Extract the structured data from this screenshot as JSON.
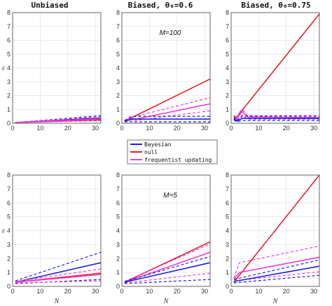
{
  "columns": [
    "Unbiased",
    "Biased, θ₀=0.6",
    "Biased, θ₀=0.75"
  ],
  "colors": {
    "bayesian": "#1f1fd8",
    "null": "#e0242b",
    "freq": "#ee3ddc"
  },
  "legend": [
    "Bayesian",
    "null",
    "frequentist updating"
  ],
  "chart_data": [
    {
      "type": "line",
      "row": 0,
      "col": 0,
      "annotation": "",
      "ylabel": "ε",
      "xlabel": "",
      "xlim": [
        0,
        32
      ],
      "ylim": [
        0,
        8
      ],
      "xticks": [
        0,
        10,
        20,
        30
      ],
      "yticks": [
        0,
        1,
        2,
        3,
        4,
        5,
        6,
        7,
        8
      ],
      "series": [
        {
          "name": "Bayesian",
          "style": "solid",
          "x": [
            1,
            32
          ],
          "y": [
            0.05,
            0.38
          ]
        },
        {
          "name": "Bayesian",
          "style": "dashed",
          "x": [
            1,
            32
          ],
          "y": [
            0.05,
            0.55
          ]
        },
        {
          "name": "Bayesian",
          "style": "dashed",
          "x": [
            1,
            32
          ],
          "y": [
            0.05,
            0.2
          ]
        },
        {
          "name": "null",
          "style": "solid",
          "x": [
            1,
            32
          ],
          "y": [
            0.05,
            0.25
          ]
        },
        {
          "name": "frequentist updating",
          "style": "solid",
          "x": [
            1,
            32
          ],
          "y": [
            0.05,
            0.32
          ]
        },
        {
          "name": "frequentist updating",
          "style": "dashed",
          "x": [
            1,
            32
          ],
          "y": [
            0.05,
            0.48
          ]
        },
        {
          "name": "frequentist updating",
          "style": "dashed",
          "x": [
            1,
            32
          ],
          "y": [
            0.05,
            0.18
          ]
        }
      ]
    },
    {
      "type": "line",
      "row": 0,
      "col": 1,
      "annotation": "M=100",
      "ylabel": "",
      "xlabel": "",
      "xlim": [
        0,
        32
      ],
      "ylim": [
        0,
        8
      ],
      "xticks": [
        0,
        10,
        20,
        30
      ],
      "yticks": [
        0,
        1,
        2,
        3,
        4,
        5,
        6,
        7,
        8
      ],
      "series": [
        {
          "name": "null",
          "style": "solid",
          "x": [
            1,
            32
          ],
          "y": [
            0.15,
            3.2
          ]
        },
        {
          "name": "frequentist updating",
          "style": "solid",
          "x": [
            1,
            3,
            5,
            32
          ],
          "y": [
            0.2,
            0.35,
            0.3,
            1.4
          ]
        },
        {
          "name": "frequentist updating",
          "style": "dashed",
          "x": [
            1,
            3,
            5,
            32
          ],
          "y": [
            0.2,
            0.5,
            0.5,
            1.85
          ]
        },
        {
          "name": "frequentist updating",
          "style": "dashed",
          "x": [
            1,
            3,
            5,
            32
          ],
          "y": [
            0.15,
            0.25,
            0.2,
            0.9
          ]
        },
        {
          "name": "Bayesian",
          "style": "dashed",
          "x": [
            1,
            4,
            32
          ],
          "y": [
            0.2,
            0.5,
            0.5
          ]
        },
        {
          "name": "Bayesian",
          "style": "solid",
          "x": [
            1,
            4,
            32
          ],
          "y": [
            0.15,
            0.3,
            0.3
          ]
        },
        {
          "name": "Bayesian",
          "style": "dashed",
          "x": [
            1,
            4,
            32
          ],
          "y": [
            0.1,
            0.1,
            0.1
          ]
        }
      ]
    },
    {
      "type": "line",
      "row": 0,
      "col": 2,
      "annotation": "",
      "ylabel": "",
      "xlabel": "",
      "xlim": [
        0,
        32
      ],
      "ylim": [
        0,
        8
      ],
      "xticks": [
        0,
        10,
        20,
        30
      ],
      "yticks": [
        0,
        1,
        2,
        3,
        4,
        5,
        6,
        7,
        8
      ],
      "series": [
        {
          "name": "null",
          "style": "solid",
          "x": [
            1,
            32
          ],
          "y": [
            0.2,
            7.9
          ]
        },
        {
          "name": "frequentist updating",
          "style": "solid",
          "x": [
            1,
            2,
            3,
            4,
            6,
            32
          ],
          "y": [
            0.5,
            0.3,
            0.6,
            0.85,
            0.45,
            0.4
          ]
        },
        {
          "name": "frequentist updating",
          "style": "dashed",
          "x": [
            1,
            2,
            3,
            4,
            6,
            32
          ],
          "y": [
            0.6,
            0.4,
            0.8,
            1.0,
            0.55,
            0.55
          ]
        },
        {
          "name": "frequentist updating",
          "style": "dashed",
          "x": [
            1,
            2,
            3,
            4,
            6,
            32
          ],
          "y": [
            0.4,
            0.2,
            0.4,
            0.6,
            0.3,
            0.3
          ]
        },
        {
          "name": "Bayesian",
          "style": "dashed",
          "x": [
            1,
            2,
            4,
            32
          ],
          "y": [
            0.5,
            0.2,
            0.5,
            0.5
          ]
        },
        {
          "name": "Bayesian",
          "style": "solid",
          "x": [
            1,
            2,
            4,
            32
          ],
          "y": [
            0.35,
            0.15,
            0.35,
            0.35
          ]
        },
        {
          "name": "Bayesian",
          "style": "dashed",
          "x": [
            1,
            2,
            4,
            32
          ],
          "y": [
            0.25,
            0.1,
            0.2,
            0.2
          ]
        }
      ]
    },
    {
      "type": "line",
      "row": 1,
      "col": 0,
      "annotation": "",
      "ylabel": "ε",
      "xlabel": "N",
      "xlim": [
        0,
        32
      ],
      "ylim": [
        0,
        8
      ],
      "xticks": [
        0,
        10,
        20,
        30
      ],
      "yticks": [
        0,
        1,
        2,
        3,
        4,
        5,
        6,
        7,
        8
      ],
      "series": [
        {
          "name": "Bayesian",
          "style": "dashed",
          "x": [
            1,
            32
          ],
          "y": [
            0.4,
            2.45
          ]
        },
        {
          "name": "Bayesian",
          "style": "solid",
          "x": [
            1,
            32
          ],
          "y": [
            0.3,
            1.7
          ]
        },
        {
          "name": "Bayesian",
          "style": "dashed",
          "x": [
            1,
            32
          ],
          "y": [
            0.2,
            0.5
          ]
        },
        {
          "name": "null",
          "style": "solid",
          "x": [
            1,
            32
          ],
          "y": [
            0.3,
            0.95
          ]
        },
        {
          "name": "frequentist updating",
          "style": "solid",
          "x": [
            1,
            32
          ],
          "y": [
            0.3,
            0.85
          ]
        },
        {
          "name": "frequentist updating",
          "style": "dashed",
          "x": [
            1,
            32
          ],
          "y": [
            0.35,
            1.25
          ]
        },
        {
          "name": "frequentist updating",
          "style": "dashed",
          "x": [
            1,
            32
          ],
          "y": [
            0.25,
            0.4
          ]
        }
      ]
    },
    {
      "type": "line",
      "row": 1,
      "col": 1,
      "annotation": "M=5",
      "ylabel": "",
      "xlabel": "N",
      "xlim": [
        0,
        32
      ],
      "ylim": [
        0,
        8
      ],
      "xticks": [
        0,
        10,
        20,
        30
      ],
      "yticks": [
        0,
        1,
        2,
        3,
        4,
        5,
        6,
        7,
        8
      ],
      "series": [
        {
          "name": "null",
          "style": "solid",
          "x": [
            1,
            32
          ],
          "y": [
            0.3,
            3.2
          ]
        },
        {
          "name": "frequentist updating",
          "style": "solid",
          "x": [
            1,
            32
          ],
          "y": [
            0.3,
            2.45
          ]
        },
        {
          "name": "frequentist updating",
          "style": "dashed",
          "x": [
            1,
            32
          ],
          "y": [
            0.35,
            3.05
          ]
        },
        {
          "name": "frequentist updating",
          "style": "dashed",
          "x": [
            1,
            32
          ],
          "y": [
            0.25,
            0.95
          ]
        },
        {
          "name": "Bayesian",
          "style": "dashed",
          "x": [
            1,
            32
          ],
          "y": [
            0.35,
            2.15
          ]
        },
        {
          "name": "Bayesian",
          "style": "solid",
          "x": [
            1,
            32
          ],
          "y": [
            0.3,
            1.7
          ]
        },
        {
          "name": "Bayesian",
          "style": "dashed",
          "x": [
            1,
            32
          ],
          "y": [
            0.2,
            0.5
          ]
        }
      ]
    },
    {
      "type": "line",
      "row": 1,
      "col": 2,
      "annotation": "",
      "ylabel": "",
      "xlabel": "N",
      "xlim": [
        0,
        32
      ],
      "ylim": [
        0,
        8
      ],
      "xticks": [
        0,
        10,
        20,
        30
      ],
      "yticks": [
        0,
        1,
        2,
        3,
        4,
        5,
        6,
        7,
        8
      ],
      "series": [
        {
          "name": "null",
          "style": "solid",
          "x": [
            1,
            32
          ],
          "y": [
            0.3,
            8.0
          ]
        },
        {
          "name": "frequentist updating",
          "style": "dashed",
          "x": [
            1,
            3,
            32
          ],
          "y": [
            0.6,
            1.7,
            2.9
          ]
        },
        {
          "name": "frequentist updating",
          "style": "solid",
          "x": [
            1,
            3,
            32
          ],
          "y": [
            0.5,
            1.0,
            2.1
          ]
        },
        {
          "name": "frequentist updating",
          "style": "dashed",
          "x": [
            1,
            32
          ],
          "y": [
            0.4,
            1.05
          ]
        },
        {
          "name": "Bayesian",
          "style": "dashed",
          "x": [
            1,
            32
          ],
          "y": [
            0.5,
            1.9
          ]
        },
        {
          "name": "Bayesian",
          "style": "solid",
          "x": [
            1,
            32
          ],
          "y": [
            0.35,
            1.45
          ]
        },
        {
          "name": "Bayesian",
          "style": "dashed",
          "x": [
            1,
            32
          ],
          "y": [
            0.25,
            0.8
          ]
        }
      ]
    }
  ]
}
